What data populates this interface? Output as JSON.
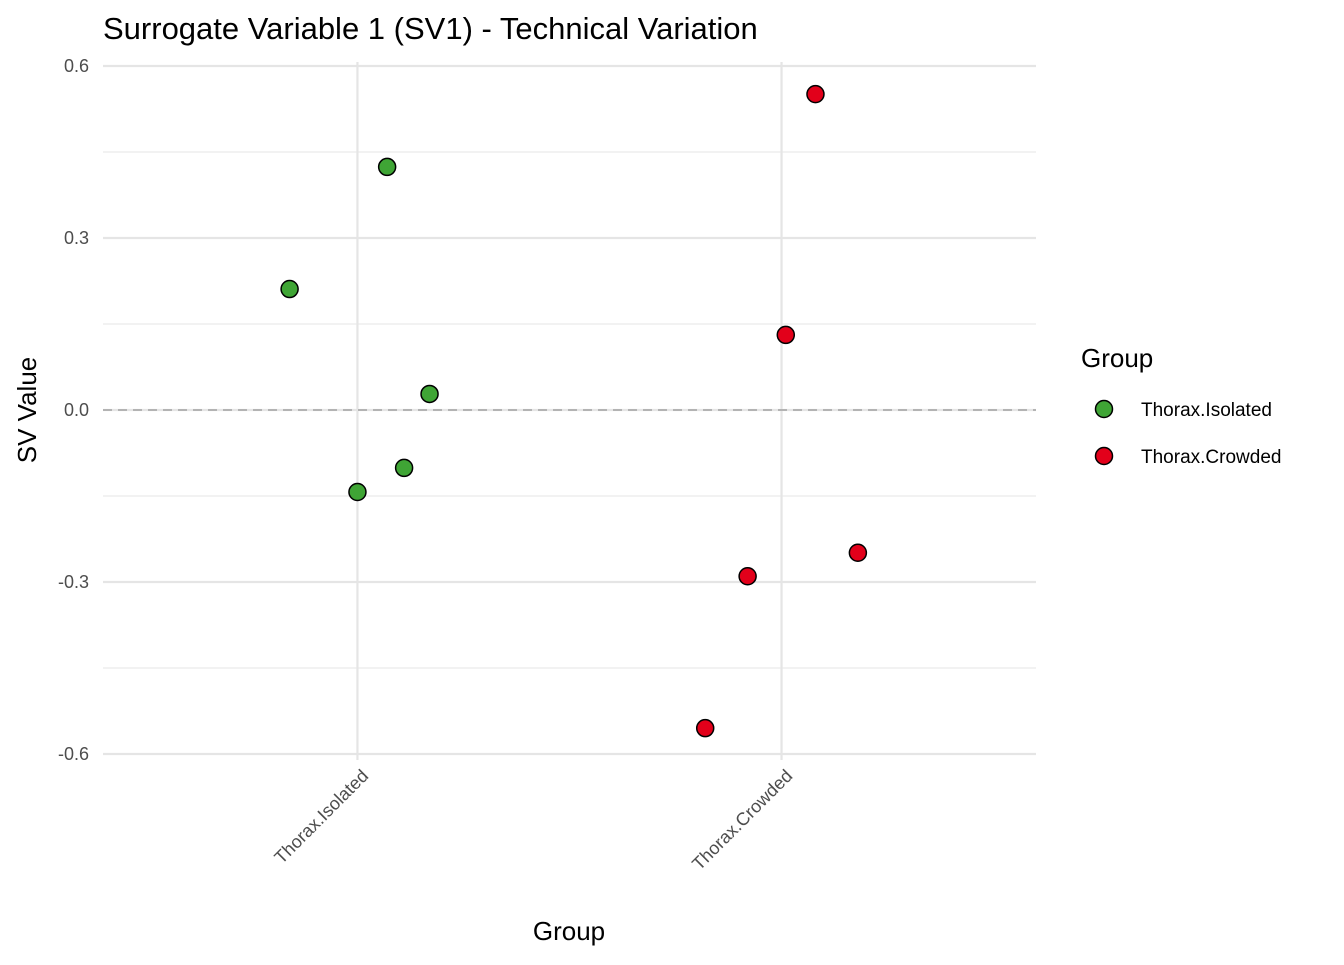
{
  "chart_data": {
    "type": "scatter",
    "title": "Surrogate Variable 1 (SV1) - Technical Variation",
    "xlabel": "Group",
    "ylabel": "SV Value",
    "categories": [
      "Thorax.Isolated",
      "Thorax.Crowded"
    ],
    "ylim": [
      -0.6,
      0.6
    ],
    "yticks": [
      0.6,
      0.3,
      0.0,
      -0.3,
      -0.6
    ],
    "ytick_labels": [
      "0.6",
      "0.3",
      "0.0",
      "-0.3",
      "-0.6"
    ],
    "grid": true,
    "reference_line": {
      "y": 0,
      "style": "dashed",
      "color": "#b3b3b3"
    },
    "legend": {
      "title": "Group",
      "placement": "right"
    },
    "series": [
      {
        "name": "Thorax.Isolated",
        "color": "#3fa535",
        "points": [
          {
            "jitter": -0.16,
            "y": 0.211
          },
          {
            "jitter": 0.07,
            "y": 0.424
          },
          {
            "jitter": 0.17,
            "y": 0.028
          },
          {
            "jitter": 0.11,
            "y": -0.101
          },
          {
            "jitter": 0.0,
            "y": -0.143
          }
        ]
      },
      {
        "name": "Thorax.Crowded",
        "color": "#e2001a",
        "points": [
          {
            "jitter": 0.08,
            "y": 0.551
          },
          {
            "jitter": 0.01,
            "y": 0.131
          },
          {
            "jitter": 0.18,
            "y": -0.249
          },
          {
            "jitter": -0.08,
            "y": -0.29
          },
          {
            "jitter": -0.18,
            "y": -0.555
          }
        ]
      }
    ]
  }
}
